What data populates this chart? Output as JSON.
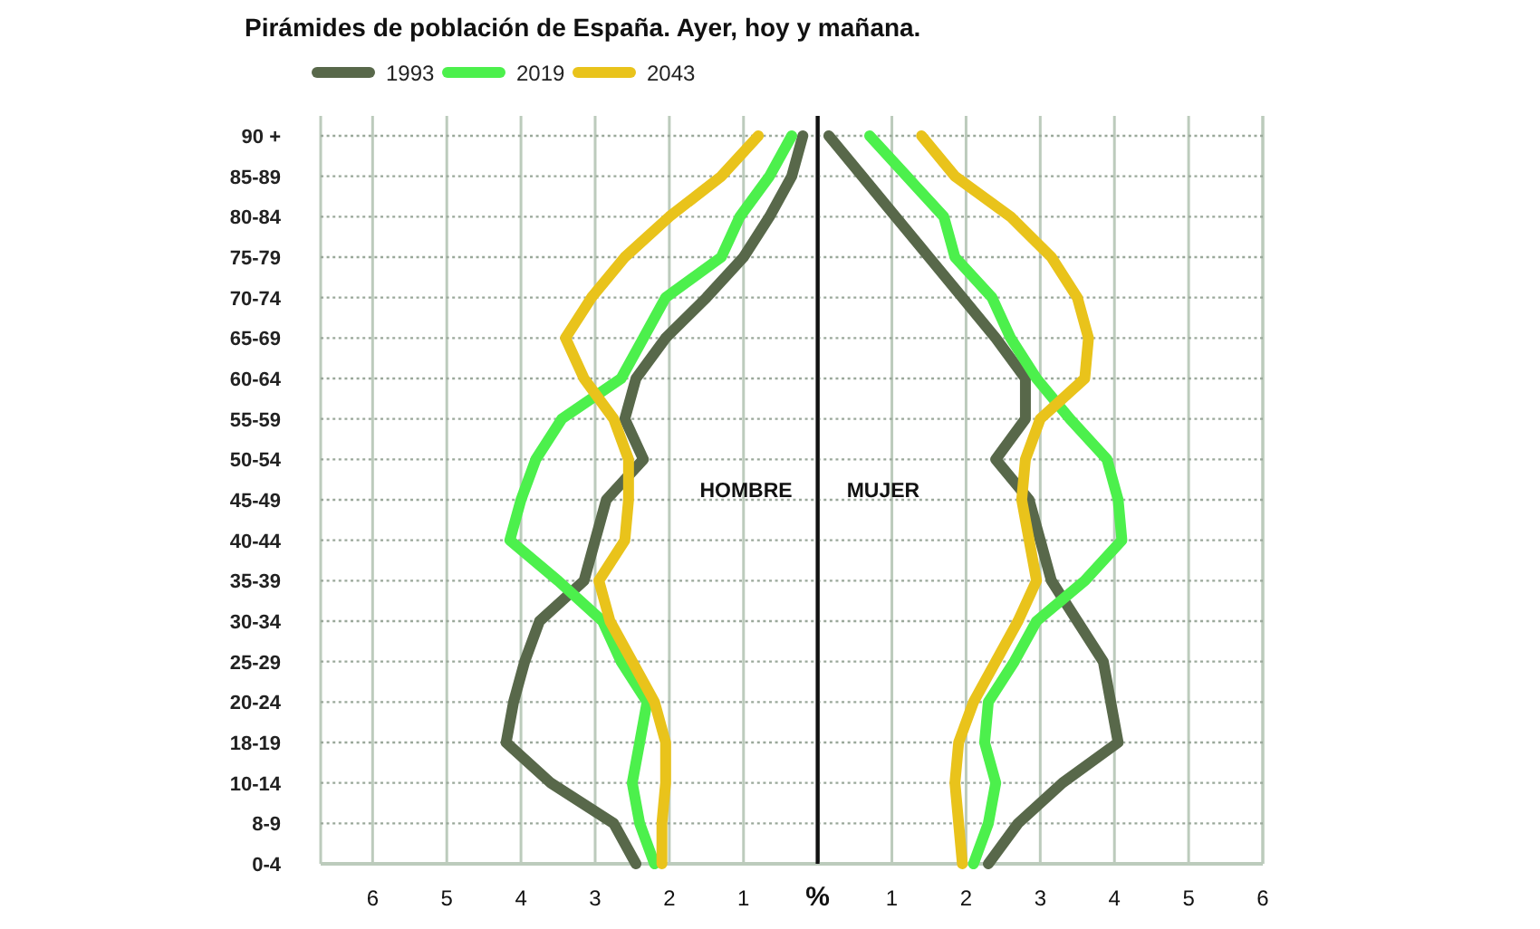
{
  "chart_data": [
    {
      "type": "line",
      "orientation": "horizontal",
      "title": "Pirámides de población de España. Ayer, hoy y mañana.",
      "categories": [
        "90 +",
        "85-89",
        "80-84",
        "75-79",
        "70-74",
        "65-69",
        "60-64",
        "55-59",
        "50-54",
        "45-49",
        "40-44",
        "35-39",
        "30-34",
        "25-29",
        "20-24",
        "18-19",
        "10-14",
        "8-9",
        "0-4"
      ],
      "series": [
        {
          "name": "1993",
          "color": "#58684a",
          "values": [
            0.2,
            0.35,
            0.65,
            1.0,
            1.5,
            2.05,
            2.45,
            2.6,
            2.35,
            2.85,
            3.0,
            3.15,
            3.75,
            3.95,
            4.1,
            4.2,
            3.6,
            2.75,
            2.45
          ]
        },
        {
          "name": "2019",
          "color": "#4cf04c",
          "values": [
            0.35,
            0.65,
            1.05,
            1.3,
            2.05,
            2.35,
            2.65,
            3.45,
            3.8,
            4.0,
            4.15,
            3.5,
            2.9,
            2.65,
            2.3,
            2.4,
            2.5,
            2.4,
            2.2
          ]
        },
        {
          "name": "2043",
          "color": "#e9c31b",
          "values": [
            0.8,
            1.3,
            2.0,
            2.6,
            3.05,
            3.4,
            3.15,
            2.75,
            2.55,
            2.55,
            2.6,
            2.95,
            2.8,
            2.5,
            2.2,
            2.05,
            2.05,
            2.1,
            2.1
          ]
        }
      ],
      "xlim": [
        6.7,
        0
      ],
      "xticks": [
        6,
        5,
        4,
        3,
        2,
        1
      ],
      "grid": true,
      "legend": "top",
      "annotations": [
        "HOMBRE"
      ]
    },
    {
      "type": "line",
      "orientation": "horizontal",
      "categories": [
        null,
        null,
        null,
        null,
        null,
        null,
        null,
        null,
        null,
        null,
        null,
        null,
        null,
        null,
        null,
        null,
        null,
        null,
        null
      ],
      "series": [
        {
          "color": "#58684a",
          "values": [
            0.15,
            0.6,
            1.05,
            1.5,
            1.95,
            2.4,
            2.8,
            2.8,
            2.4,
            2.85,
            3.0,
            3.15,
            3.5,
            3.85,
            3.95,
            4.05,
            3.3,
            2.7,
            2.3
          ]
        },
        {
          "color": "#4cf04c",
          "values": [
            0.7,
            1.2,
            1.7,
            1.85,
            2.35,
            2.6,
            2.95,
            3.4,
            3.9,
            4.05,
            4.1,
            3.6,
            2.95,
            2.65,
            2.3,
            2.25,
            2.4,
            2.3,
            2.1
          ]
        },
        {
          "color": "#e9c31b",
          "values": [
            1.4,
            1.85,
            2.6,
            3.15,
            3.5,
            3.65,
            3.6,
            3.0,
            2.8,
            2.75,
            2.85,
            2.95,
            2.7,
            2.4,
            2.1,
            1.9,
            1.85,
            1.9,
            1.95
          ]
        }
      ],
      "xlim": [
        0,
        6
      ],
      "xticks": [
        {
          "value": 0,
          "label": "%"
        },
        1,
        2,
        3,
        4,
        5,
        6
      ],
      "grid": true,
      "annotations": [
        "MUJER"
      ]
    }
  ]
}
